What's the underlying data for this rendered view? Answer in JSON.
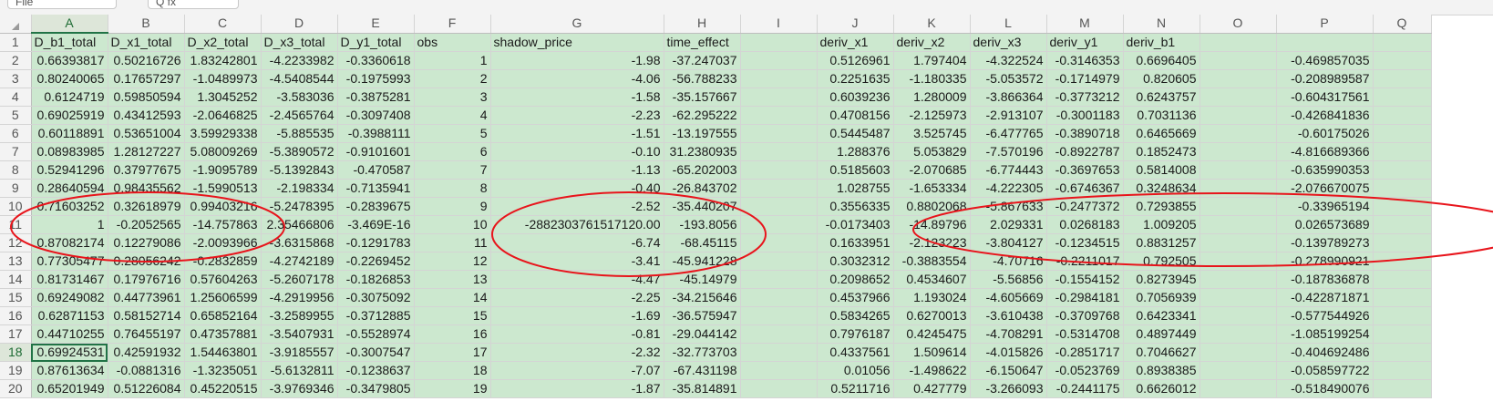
{
  "toolbar": {
    "name_box": "File",
    "formula_fx": "Q  fx"
  },
  "columns": [
    "A",
    "B",
    "C",
    "D",
    "E",
    "F",
    "G",
    "H",
    "I",
    "J",
    "K",
    "L",
    "M",
    "N",
    "O",
    "P",
    "Q"
  ],
  "active_column": "A",
  "active_row": "18",
  "headers": [
    "D_b1_total",
    "D_x1_total",
    "D_x2_total",
    "D_x3_total",
    "D_y1_total",
    "obs",
    "shadow_price",
    "time_effect",
    "",
    "deriv_x1",
    "deriv_x2",
    "deriv_x3",
    "deriv_y1",
    "deriv_b1",
    "",
    "",
    ""
  ],
  "rows": [
    {
      "num": "2",
      "cells": [
        "0.66393817",
        "0.50216726",
        "1.83242801",
        "-4.2233982",
        "-0.3360618",
        "1",
        "-1.98",
        "-37.247037",
        "",
        "0.5126961",
        "1.797404",
        "-4.322524",
        "-0.3146353",
        "0.6696405",
        "",
        "-0.469857035",
        ""
      ]
    },
    {
      "num": "3",
      "cells": [
        "0.80240065",
        "0.17657297",
        "-1.0489973",
        "-4.5408544",
        "-0.1975993",
        "2",
        "-4.06",
        "-56.788233",
        "",
        "0.2251635",
        "-1.180335",
        "-5.053572",
        "-0.1714979",
        "0.820605",
        "",
        "-0.208989587",
        ""
      ]
    },
    {
      "num": "4",
      "cells": [
        "0.6124719",
        "0.59850594",
        "1.3045252",
        "-3.583036",
        "-0.3875281",
        "3",
        "-1.58",
        "-35.157667",
        "",
        "0.6039236",
        "1.280009",
        "-3.866364",
        "-0.3773212",
        "0.6243757",
        "",
        "-0.604317561",
        ""
      ]
    },
    {
      "num": "5",
      "cells": [
        "0.69025919",
        "0.43412593",
        "-2.0646825",
        "-2.4565764",
        "-0.3097408",
        "4",
        "-2.23",
        "-62.295222",
        "",
        "0.4708156",
        "-2.125973",
        "-2.913107",
        "-0.3001183",
        "0.7031136",
        "",
        "-0.426841836",
        ""
      ]
    },
    {
      "num": "6",
      "cells": [
        "0.60118891",
        "0.53651004",
        "3.59929338",
        "-5.885535",
        "-0.3988111",
        "5",
        "-1.51",
        "-13.197555",
        "",
        "0.5445487",
        "3.525745",
        "-6.477765",
        "-0.3890718",
        "0.6465669",
        "",
        "-0.60175026",
        ""
      ]
    },
    {
      "num": "7",
      "cells": [
        "0.08983985",
        "1.28127227",
        "5.08009269",
        "-5.3890572",
        "-0.9101601",
        "6",
        "-0.10",
        "31.2380935",
        "",
        "1.288376",
        "5.053829",
        "-7.570196",
        "-0.8922787",
        "0.1852473",
        "",
        "-4.816689366",
        ""
      ]
    },
    {
      "num": "8",
      "cells": [
        "0.52941296",
        "0.37977675",
        "-1.9095789",
        "-5.1392843",
        "-0.470587",
        "7",
        "-1.13",
        "-65.202003",
        "",
        "0.5185603",
        "-2.070685",
        "-6.774443",
        "-0.3697653",
        "0.5814008",
        "",
        "-0.635990353",
        ""
      ]
    },
    {
      "num": "9",
      "cells": [
        "0.28640594",
        "0.98435562",
        "-1.5990513",
        "-2.198334",
        "-0.7135941",
        "8",
        "-0.40",
        "-26.843702",
        "",
        "1.028755",
        "-1.653334",
        "-4.222305",
        "-0.6746367",
        "0.3248634",
        "",
        "-2.076670075",
        ""
      ]
    },
    {
      "num": "10",
      "cells": [
        "0.71603252",
        "0.32618979",
        "0.99403216",
        "-5.2478395",
        "-0.2839675",
        "9",
        "-2.52",
        "-35.440207",
        "",
        "0.3556335",
        "0.8802068",
        "-5.867633",
        "-0.2477372",
        "0.7293855",
        "",
        "-0.33965194",
        ""
      ]
    },
    {
      "num": "11",
      "cells": [
        "1",
        "-0.2052565",
        "-14.757863",
        "2.35466806",
        "-3.469E-16",
        "10",
        "-2882303761517120.00",
        "-193.8056",
        "",
        "-0.0173403",
        "-14.89796",
        "2.029331",
        "0.0268183",
        "1.009205",
        "",
        "0.026573689",
        ""
      ]
    },
    {
      "num": "12",
      "cells": [
        "0.87082174",
        "0.12279086",
        "-2.0093966",
        "-3.6315868",
        "-0.1291783",
        "11",
        "-6.74",
        "-68.45115",
        "",
        "0.1633951",
        "-2.123223",
        "-3.804127",
        "-0.1234515",
        "0.8831257",
        "",
        "-0.139789273",
        ""
      ]
    },
    {
      "num": "13",
      "cells": [
        "0.77305477",
        "0.28056242",
        "-0.2832859",
        "-4.2742189",
        "-0.2269452",
        "12",
        "-3.41",
        "-45.941228",
        "",
        "0.3032312",
        "-0.3883554",
        "-4.70716",
        "-0.2211017",
        "0.792505",
        "",
        "-0.278990921",
        ""
      ]
    },
    {
      "num": "14",
      "cells": [
        "0.81731467",
        "0.17976716",
        "0.57604263",
        "-5.2607178",
        "-0.1826853",
        "13",
        "-4.47",
        "-45.14979",
        "",
        "0.2098652",
        "0.4534607",
        "-5.56856",
        "-0.1554152",
        "0.8273945",
        "",
        "-0.187836878",
        ""
      ]
    },
    {
      "num": "15",
      "cells": [
        "0.69249082",
        "0.44773961",
        "1.25606599",
        "-4.2919956",
        "-0.3075092",
        "14",
        "-2.25",
        "-34.215646",
        "",
        "0.4537966",
        "1.193024",
        "-4.605669",
        "-0.2984181",
        "0.7056939",
        "",
        "-0.422871871",
        ""
      ]
    },
    {
      "num": "16",
      "cells": [
        "0.62871153",
        "0.58152714",
        "0.65852164",
        "-3.2589955",
        "-0.3712885",
        "15",
        "-1.69",
        "-36.575947",
        "",
        "0.5834265",
        "0.6270013",
        "-3.610438",
        "-0.3709768",
        "0.6423341",
        "",
        "-0.577544926",
        ""
      ]
    },
    {
      "num": "17",
      "cells": [
        "0.44710255",
        "0.76455197",
        "0.47357881",
        "-3.5407931",
        "-0.5528974",
        "16",
        "-0.81",
        "-29.044142",
        "",
        "0.7976187",
        "0.4245475",
        "-4.708291",
        "-0.5314708",
        "0.4897449",
        "",
        "-1.085199254",
        ""
      ]
    },
    {
      "num": "18",
      "cells": [
        "0.69924531",
        "0.42591932",
        "1.54463801",
        "-3.9185557",
        "-0.3007547",
        "17",
        "-2.32",
        "-32.773703",
        "",
        "0.4337561",
        "1.509614",
        "-4.015826",
        "-0.2851717",
        "0.7046627",
        "",
        "-0.404692486",
        ""
      ]
    },
    {
      "num": "19",
      "cells": [
        "0.87613634",
        "-0.0881316",
        "-1.3235051",
        "-5.6132811",
        "-0.1238637",
        "18",
        "-7.07",
        "-67.431198",
        "",
        "0.01056",
        "-1.498622",
        "-6.150647",
        "-0.0523769",
        "0.8938385",
        "",
        "-0.058597722",
        ""
      ]
    },
    {
      "num": "20",
      "cells": [
        "0.65201949",
        "0.51226084",
        "0.45220515",
        "-3.9769346",
        "-0.3479805",
        "19",
        "-1.87",
        "-35.814891",
        "",
        "0.5211716",
        "0.427779",
        "-3.266093",
        "-0.2441175",
        "0.6626012",
        "",
        "-0.518490076",
        ""
      ]
    }
  ],
  "annotations": {
    "ellipse_color": "#e8141b"
  }
}
